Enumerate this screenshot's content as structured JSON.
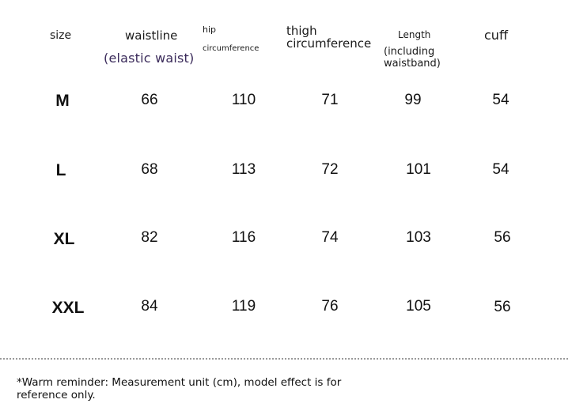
{
  "headers": {
    "size": "size",
    "waistline": "waistline",
    "waistline_note": "(elastic waist)",
    "hip": "hip",
    "hip_full": "circumference",
    "thigh": "thigh circumference",
    "length": "Length",
    "length_note": "(including waistband)",
    "cuff": "cuff"
  },
  "rows": [
    {
      "size": "M",
      "waistline": "66",
      "hip": "110",
      "thigh": "71",
      "length": "99",
      "cuff": "54"
    },
    {
      "size": "L",
      "waistline": "68",
      "hip": "113",
      "thigh": "72",
      "length": "101",
      "cuff": "54"
    },
    {
      "size": "XL",
      "waistline": "82",
      "hip": "116",
      "thigh": "74",
      "length": "103",
      "cuff": "56"
    },
    {
      "size": "XXL",
      "waistline": "84",
      "hip": "119",
      "thigh": "76",
      "length": "105",
      "cuff": "56"
    }
  ],
  "note": "*Warm reminder: Measurement unit (cm), model effect is for reference only."
}
